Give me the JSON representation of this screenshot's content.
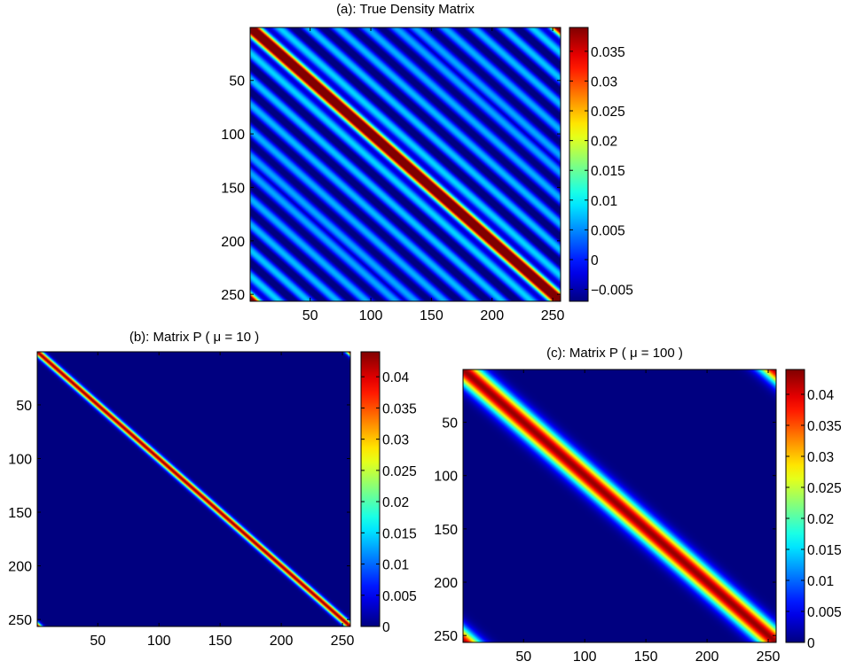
{
  "chart_data": [
    {
      "type": "heatmap",
      "title": "(a): True Density Matrix",
      "matrix_size": 256,
      "pattern": "Toeplitz (diagonal stripes); main diagonal maximum, oscillating off-diagonal bands, small corner values",
      "diagonal_half_width": 7,
      "oscillation_period": 24,
      "xticks": [
        50,
        100,
        150,
        200,
        250
      ],
      "yticks": [
        50,
        100,
        150,
        200,
        250
      ],
      "colorbar": {
        "min": -0.007,
        "max": 0.039,
        "ticks": [
          "−0.005",
          "0",
          "0.005",
          "0.01",
          "0.015",
          "0.02",
          "0.025",
          "0.03",
          "0.035"
        ],
        "tick_values": [
          -0.005,
          0,
          0.005,
          0.01,
          0.015,
          0.02,
          0.025,
          0.03,
          0.035
        ]
      },
      "colormap": "jet"
    },
    {
      "type": "heatmap",
      "title": "(b): Matrix P ( μ = 10 )",
      "matrix_size": 256,
      "pattern": "narrow band along main diagonal, zero elsewhere",
      "band_half_width": 3,
      "peak": 0.043,
      "xticks": [
        50,
        100,
        150,
        200,
        250
      ],
      "yticks": [
        50,
        100,
        150,
        200,
        250
      ],
      "colorbar": {
        "min": 0,
        "max": 0.044,
        "ticks": [
          "0",
          "0.005",
          "0.01",
          "0.015",
          "0.02",
          "0.025",
          "0.03",
          "0.035",
          "0.04"
        ],
        "tick_values": [
          0,
          0.005,
          0.01,
          0.015,
          0.02,
          0.025,
          0.03,
          0.035,
          0.04
        ]
      },
      "colormap": "jet"
    },
    {
      "type": "heatmap",
      "title": "(c): Matrix P ( μ = 100 )",
      "matrix_size": 256,
      "pattern": "wide band along main diagonal, zero elsewhere",
      "band_half_width": 10,
      "peak": 0.043,
      "xticks": [
        50,
        100,
        150,
        200,
        250
      ],
      "yticks": [
        50,
        100,
        150,
        200,
        250
      ],
      "colorbar": {
        "min": 0,
        "max": 0.044,
        "ticks": [
          "0",
          "0.005",
          "0.01",
          "0.015",
          "0.02",
          "0.025",
          "0.03",
          "0.035",
          "0.04"
        ],
        "tick_values": [
          0,
          0.005,
          0.01,
          0.015,
          0.02,
          0.025,
          0.03,
          0.035,
          0.04
        ]
      },
      "colormap": "jet"
    }
  ]
}
